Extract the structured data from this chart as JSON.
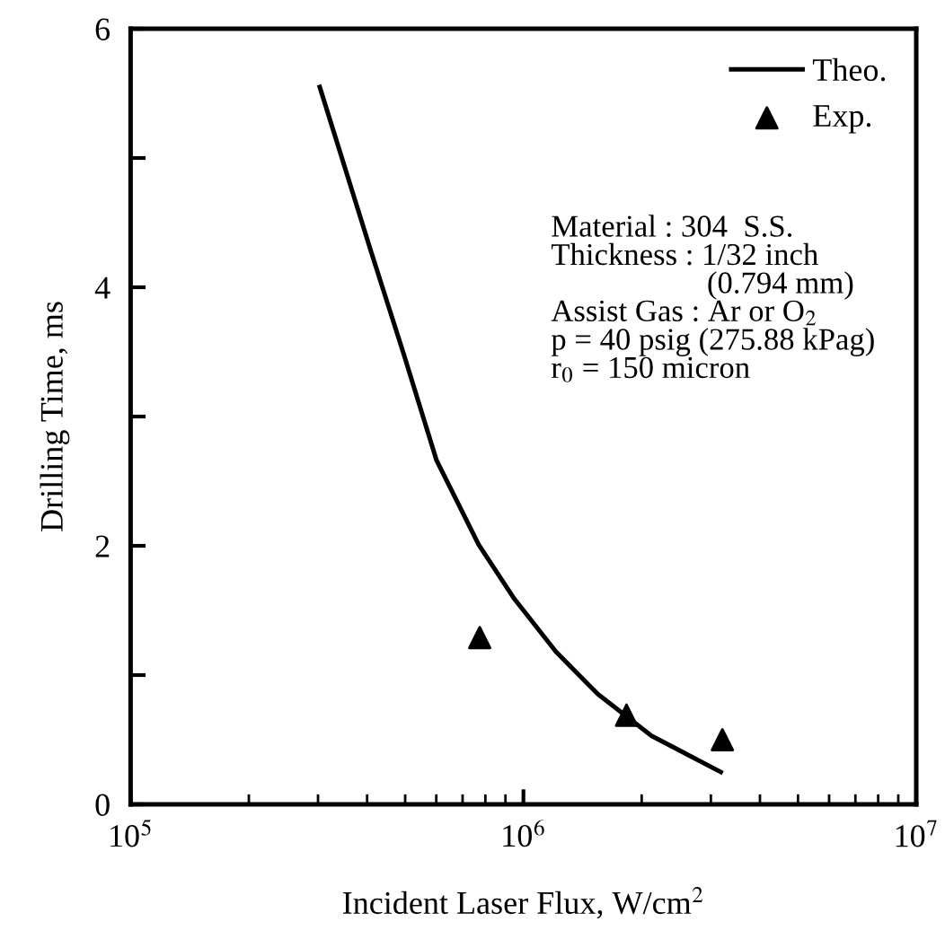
{
  "chart_data": {
    "type": "line",
    "xlabel": "Incident Laser Flux, W/cm$^{2}$",
    "ylabel": "Drilling Time, ms",
    "log": "x",
    "xlim": [
      100000,
      10000000
    ],
    "ylim": [
      0,
      6
    ],
    "xticks": [
      {
        "value": 100000,
        "label": "10$^{5}$"
      },
      {
        "value": 1000000,
        "label": "10$^{6}$"
      },
      {
        "value": 10000000,
        "label": "10$^{7}$"
      }
    ],
    "yticks": [
      0,
      {
        "value": 1,
        "label": null
      },
      2,
      {
        "value": 3,
        "label": null
      },
      4,
      {
        "value": 5,
        "label": null
      },
      6
    ],
    "grid": false,
    "legend": "top right",
    "series": [
      {
        "name": "Theo.",
        "type": "line",
        "color": "#000000",
        "marker": "none",
        "line_style": "solid",
        "x": [
          303000,
          409000,
          495000,
          601000,
          769000,
          948000,
          1210000,
          1550000,
          2120000,
          3180000
        ],
        "values": [
          5.55,
          4.28,
          3.49,
          2.66,
          2.01,
          1.59,
          1.18,
          0.85,
          0.53,
          0.25
        ]
      },
      {
        "name": "Exp.",
        "type": "scatter",
        "color": "#000000",
        "marker": "triangle",
        "x": [
          774000,
          1830000,
          3210000
        ],
        "values": [
          1.29,
          0.69,
          0.5
        ]
      }
    ],
    "annotations": [
      "Material : 304  S.S.\nThickness : 1/32 inch\n                    (0.794 mm)\nAssist Gas : Ar or O$_{2}$\np = 40 psig (275.88 kPag)\nr$_{0}$ = 150 micron"
    ]
  }
}
